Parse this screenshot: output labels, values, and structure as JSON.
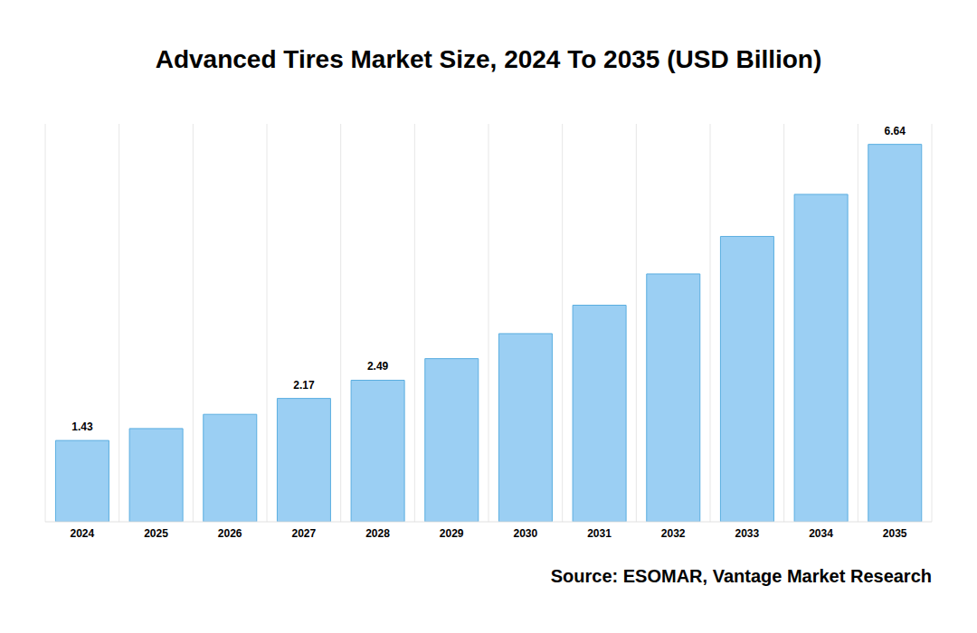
{
  "chart_data": {
    "type": "bar",
    "title": "Advanced Tires Market Size, 2024 To 2035 (USD Billion)",
    "source": "Source: ESOMAR, Vantage Market Research",
    "categories": [
      "2024",
      "2025",
      "2026",
      "2027",
      "2028",
      "2029",
      "2030",
      "2031",
      "2032",
      "2033",
      "2034",
      "2035"
    ],
    "values": [
      1.43,
      1.64,
      1.89,
      2.17,
      2.49,
      2.87,
      3.31,
      3.81,
      4.36,
      5.02,
      5.76,
      6.64
    ],
    "value_labels": [
      "1.43",
      null,
      null,
      "2.17",
      "2.49",
      null,
      null,
      null,
      null,
      null,
      null,
      "6.64"
    ],
    "color": "#9bcff3",
    "ylim": [
      0,
      7
    ],
    "grid": true,
    "data_labels": true,
    "tick_labels": "x"
  }
}
